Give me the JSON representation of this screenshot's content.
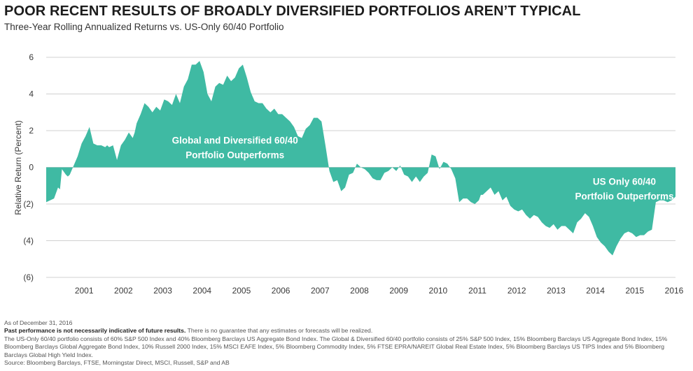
{
  "title": "POOR RECENT RESULTS OF BROADLY DIVERSIFIED PORTFOLIOS AREN’T TYPICAL",
  "subtitle": "Three-Year Rolling Annualized Returns vs. US-Only 60/40 Portfolio",
  "colors": {
    "fill": "#3fbaa3",
    "grid": "#d0d0d0",
    "text": "#3a3a3a",
    "annotation": "#ffffff"
  },
  "chart_data": {
    "type": "area",
    "ylabel": "Relative Return (Percent)",
    "xlabel": "",
    "ylim": [
      -6,
      6
    ],
    "xlim": [
      2000.0,
      2016.0
    ],
    "y_ticks": [
      6,
      4,
      2,
      0,
      -2,
      -4,
      -6
    ],
    "y_tick_labels": [
      "6",
      "4",
      "2",
      "0",
      "(2)",
      "(4)",
      "(6)"
    ],
    "x_ticks": [
      2001,
      2002,
      2003,
      2004,
      2005,
      2006,
      2007,
      2008,
      2009,
      2010,
      2011,
      2012,
      2013,
      2014,
      2015,
      2016
    ],
    "x_tick_labels": [
      "2001",
      "2002",
      "2003",
      "2004",
      "2005",
      "2006",
      "2007",
      "2008",
      "2009",
      "2010",
      "2011",
      "2012",
      "2013",
      "2014",
      "2015",
      "2016"
    ],
    "grid": true,
    "annotations": [
      {
        "lines": [
          "Global and Diversified 60/40",
          "Portfolio Outperforms"
        ],
        "x": 2004.8,
        "y": 1.3
      },
      {
        "lines": [
          "US Only 60/40",
          "Portfolio Outperforms"
        ],
        "x": 2014.7,
        "y": -0.95
      }
    ],
    "series": [
      {
        "x": [
          2000.0,
          2000.1,
          2000.2,
          2000.3,
          2000.35,
          2000.4,
          2000.5,
          2000.55,
          2000.6,
          2000.7,
          2000.8,
          2000.9,
          2001.0,
          2001.1,
          2001.2,
          2001.3,
          2001.4,
          2001.5,
          2001.55,
          2001.6,
          2001.7,
          2001.8,
          2001.9,
          2002.0,
          2002.1,
          2002.2,
          2002.25,
          2002.3,
          2002.4,
          2002.5,
          2002.6,
          2002.7,
          2002.8,
          2002.9,
          2003.0,
          2003.1,
          2003.2,
          2003.3,
          2003.4,
          2003.5,
          2003.6,
          2003.7,
          2003.8,
          2003.9,
          2004.0,
          2004.1,
          2004.2,
          2004.3,
          2004.4,
          2004.5,
          2004.6,
          2004.7,
          2004.8,
          2004.9,
          2005.0,
          2005.1,
          2005.2,
          2005.3,
          2005.4,
          2005.5,
          2005.6,
          2005.7,
          2005.8,
          2005.9,
          2006.0,
          2006.1,
          2006.2,
          2006.3,
          2006.4,
          2006.5,
          2006.6,
          2006.7,
          2006.8,
          2006.9,
          2007.0,
          2007.1,
          2007.2,
          2007.3,
          2007.4,
          2007.5,
          2007.6,
          2007.7,
          2007.8,
          2007.9,
          2008.0,
          2008.1,
          2008.2,
          2008.3,
          2008.4,
          2008.5,
          2008.6,
          2008.7,
          2008.8,
          2008.9,
          2009.0,
          2009.1,
          2009.2,
          2009.3,
          2009.4,
          2009.5,
          2009.6,
          2009.7,
          2009.8,
          2009.9,
          2010.0,
          2010.1,
          2010.2,
          2010.3,
          2010.4,
          2010.5,
          2010.6,
          2010.7,
          2010.8,
          2010.9,
          2011.0,
          2011.05,
          2011.1,
          2011.2,
          2011.3,
          2011.4,
          2011.5,
          2011.6,
          2011.7,
          2011.8,
          2011.9,
          2012.0,
          2012.1,
          2012.2,
          2012.3,
          2012.4,
          2012.5,
          2012.6,
          2012.7,
          2012.8,
          2012.9,
          2013.0,
          2013.1,
          2013.2,
          2013.3,
          2013.4,
          2013.5,
          2013.6,
          2013.7,
          2013.8,
          2013.9,
          2014.0,
          2014.1,
          2014.2,
          2014.3,
          2014.4,
          2014.5,
          2014.6,
          2014.7,
          2014.8,
          2014.9,
          2015.0,
          2015.1,
          2015.2,
          2015.3,
          2015.4,
          2015.5,
          2015.6,
          2015.7,
          2015.8,
          2015.9,
          2016.0
        ],
        "y": [
          -1.9,
          -1.8,
          -1.7,
          -1.1,
          -1.2,
          -0.1,
          -0.4,
          -0.5,
          -0.4,
          0.1,
          0.6,
          1.3,
          1.7,
          2.2,
          1.3,
          1.2,
          1.2,
          1.1,
          1.2,
          1.1,
          1.2,
          0.4,
          1.2,
          1.5,
          1.9,
          1.6,
          1.9,
          2.4,
          2.9,
          3.5,
          3.3,
          3.0,
          3.3,
          3.1,
          3.7,
          3.6,
          3.4,
          4.0,
          3.5,
          4.4,
          4.8,
          5.6,
          5.6,
          5.8,
          5.2,
          4.0,
          3.6,
          4.4,
          4.6,
          4.5,
          5.0,
          4.7,
          4.9,
          5.4,
          5.6,
          4.9,
          4.1,
          3.6,
          3.5,
          3.5,
          3.2,
          3.0,
          3.2,
          2.9,
          2.9,
          2.7,
          2.5,
          2.2,
          1.7,
          1.6,
          2.1,
          2.3,
          2.7,
          2.7,
          2.5,
          1.2,
          -0.2,
          -0.8,
          -0.7,
          -1.3,
          -1.1,
          -0.4,
          -0.3,
          0.2,
          0.0,
          -0.1,
          -0.3,
          -0.6,
          -0.7,
          -0.7,
          -0.3,
          -0.2,
          0.0,
          -0.2,
          0.1,
          -0.4,
          -0.5,
          -0.8,
          -0.5,
          -0.8,
          -0.5,
          -0.3,
          0.7,
          0.6,
          -0.1,
          0.3,
          0.2,
          -0.1,
          -0.6,
          -1.9,
          -1.7,
          -1.7,
          -1.9,
          -2.0,
          -1.8,
          -1.5,
          -1.5,
          -1.3,
          -1.1,
          -1.5,
          -1.3,
          -1.8,
          -1.6,
          -2.1,
          -2.3,
          -2.4,
          -2.3,
          -2.6,
          -2.8,
          -2.6,
          -2.7,
          -3.0,
          -3.2,
          -3.3,
          -3.1,
          -3.4,
          -3.2,
          -3.2,
          -3.4,
          -3.6,
          -3.0,
          -2.8,
          -2.5,
          -2.7,
          -3.2,
          -3.8,
          -4.1,
          -4.3,
          -4.6,
          -4.8,
          -4.3,
          -3.9,
          -3.6,
          -3.5,
          -3.6,
          -3.8,
          -3.7,
          -3.7,
          -3.5,
          -3.4,
          -1.9,
          -1.8,
          -1.8,
          -1.9,
          -1.8,
          -1.6
        ]
      }
    ]
  },
  "footnotes": {
    "as_of": "As of December 31, 2016",
    "disclaimer_bold": "Past performance is not necessarily indicative of future results.",
    "disclaimer_rest": " There is no guarantee that any estimates or forecasts will be realized.",
    "methodology": "The US-Only 60/40 portfolio consists of 60% S&P 500 Index and 40% Bloomberg Barclays US Aggregate Bond Index. The Global & Diversified 60/40 portfolio consists of 25% S&P 500 Index, 15% Bloomberg Barclays US Aggregate Bond Index, 15% Bloomberg Barclays Global Aggregate Bond Index, 10% Russell 2000 Index, 15% MSCI EAFE Index, 5% Bloomberg Commodity Index, 5% FTSE EPRA/NAREIT Global Real Estate Index, 5% Bloomberg Barclays US TIPS Index and 5% Bloomberg Barclays Global High Yield Index.",
    "source": "Source: Bloomberg Barclays, FTSE, Morningstar Direct, MSCI, Russell, S&P and AB"
  }
}
